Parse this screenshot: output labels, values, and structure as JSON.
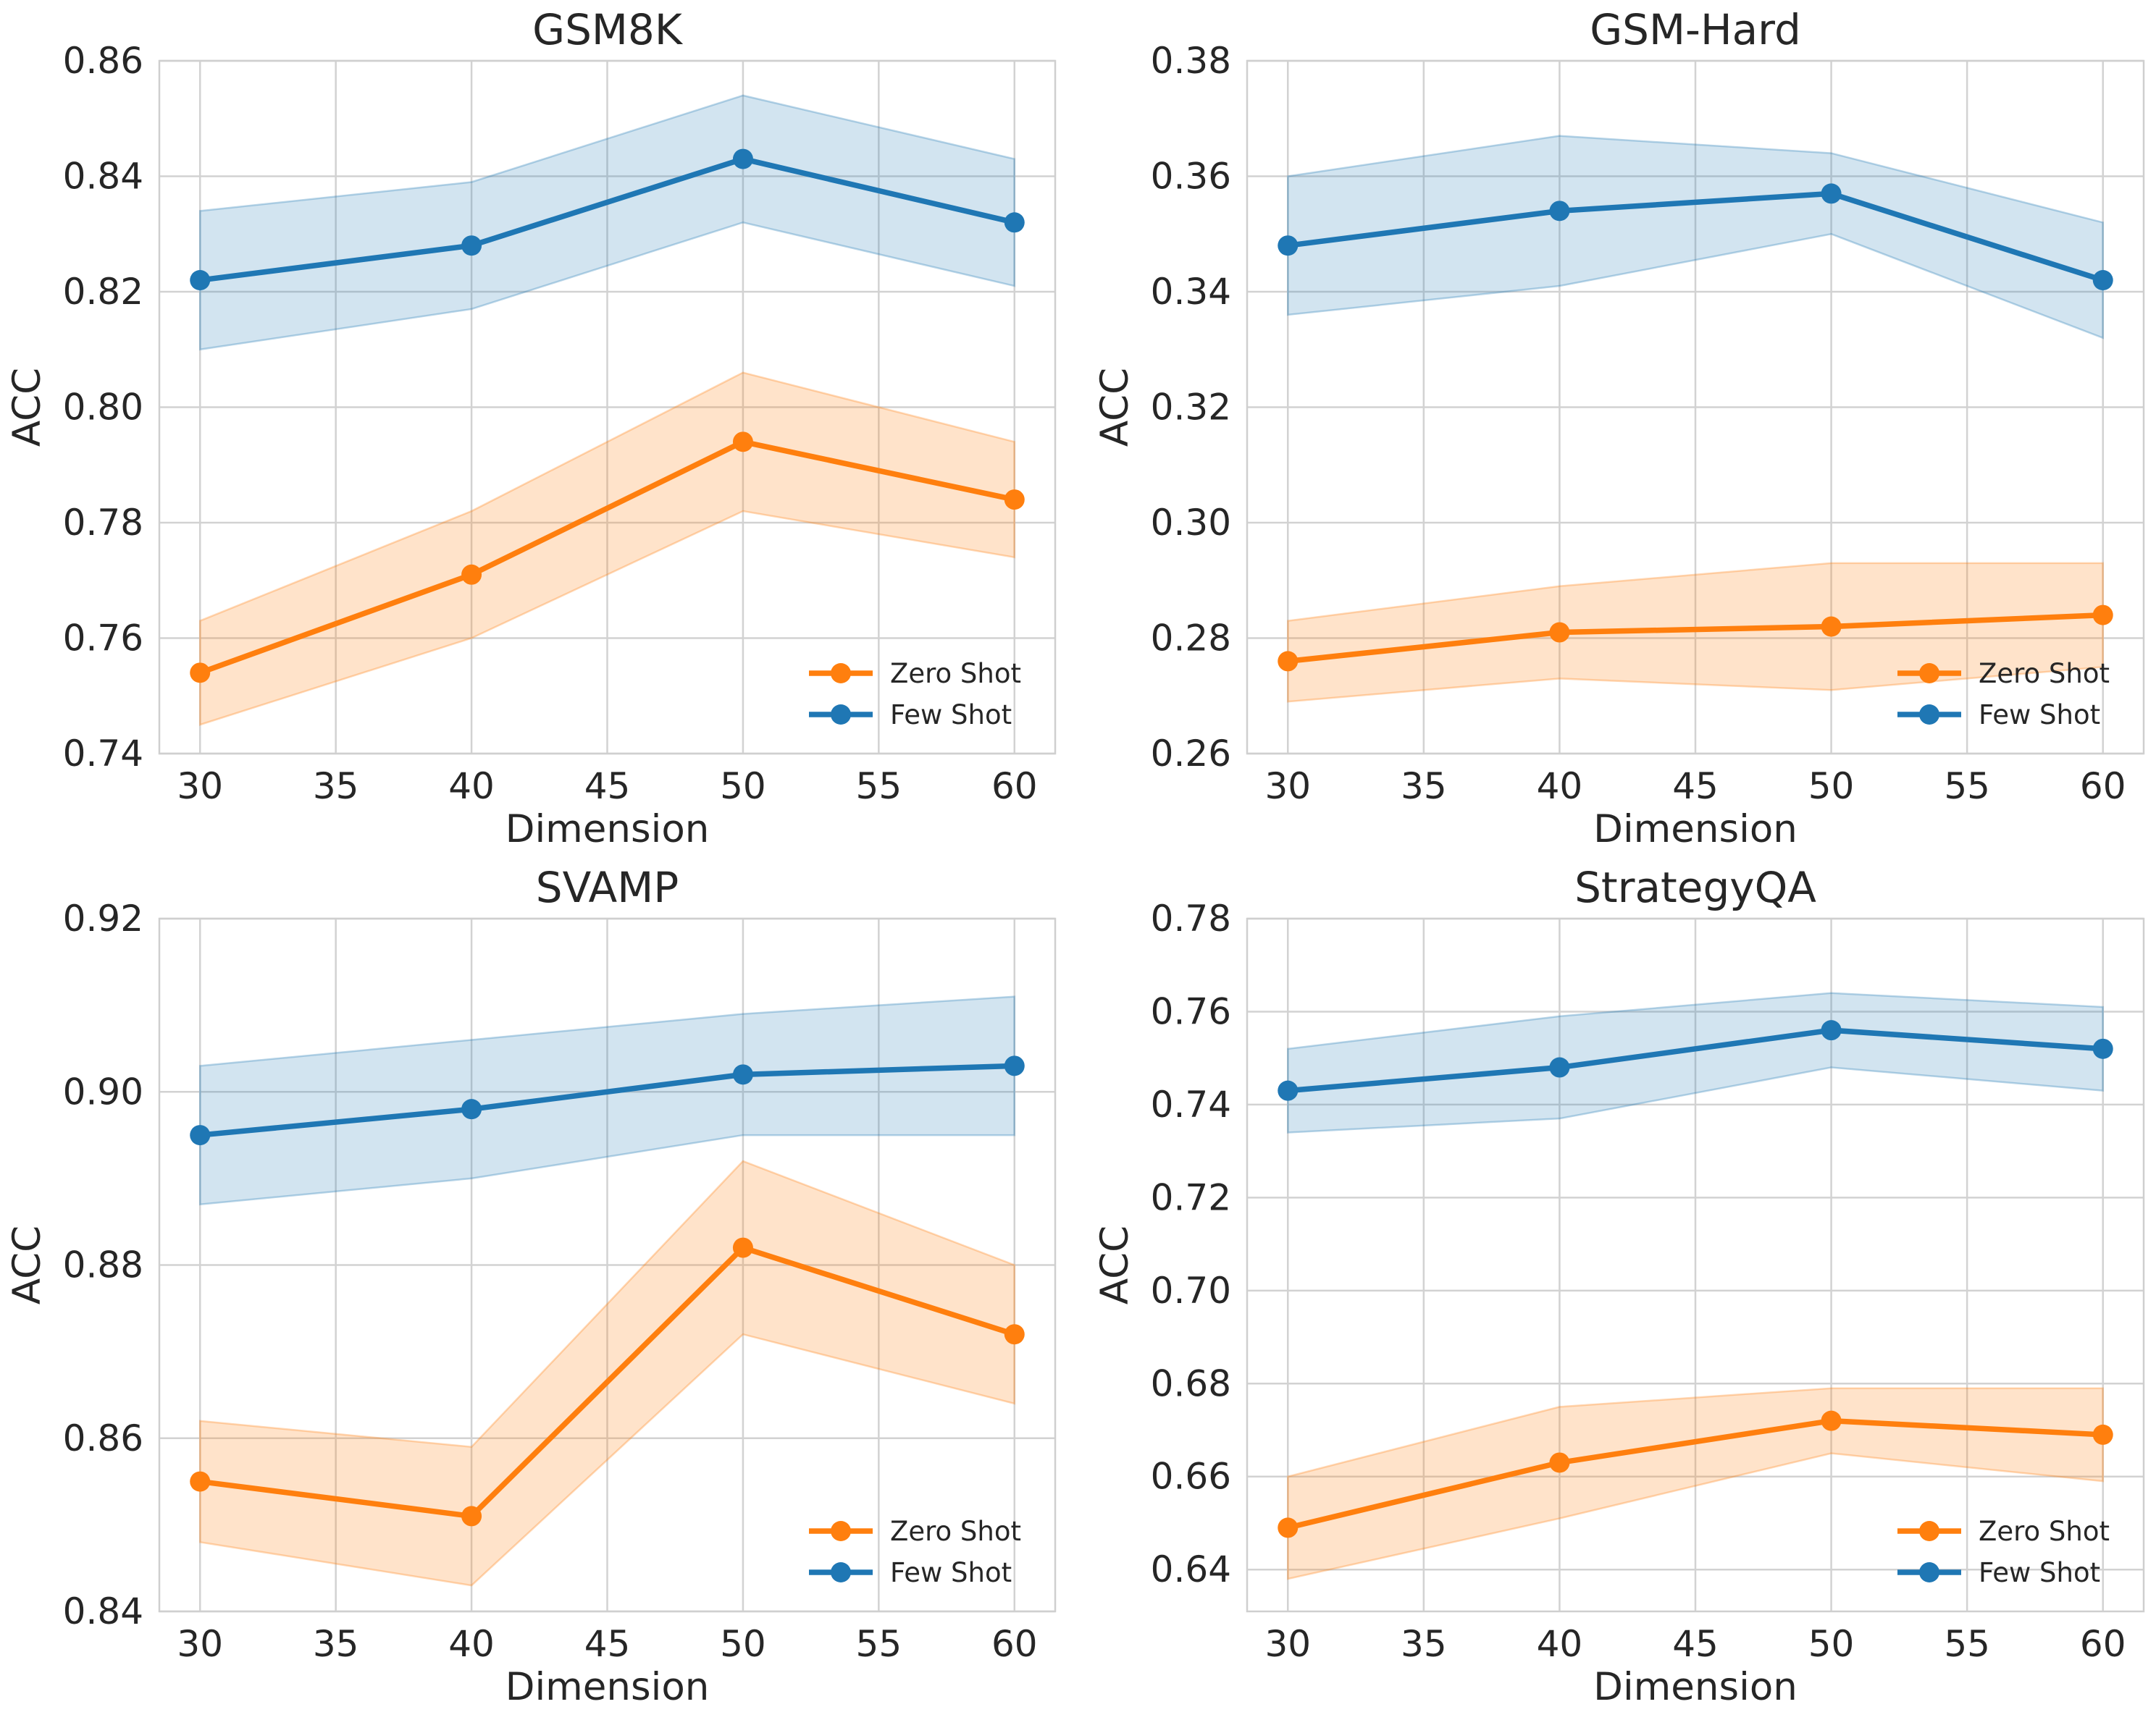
{
  "colors": {
    "zero_shot": "#ff7f0e",
    "few_shot": "#1f77b4"
  },
  "chart_data": [
    {
      "type": "line",
      "title": "GSM8K",
      "xlabel": "Dimension",
      "ylabel": "ACC",
      "x": [
        30,
        40,
        50,
        60
      ],
      "xticks": [
        30,
        35,
        40,
        45,
        50,
        55,
        60
      ],
      "xlim": [
        28.5,
        61.5
      ],
      "yticks": [
        0.74,
        0.76,
        0.78,
        0.8,
        0.82,
        0.84,
        0.86
      ],
      "ytick_labels": [
        "0.74",
        "0.76",
        "0.78",
        "0.80",
        "0.82",
        "0.84",
        "0.86"
      ],
      "ylim": [
        0.74,
        0.86
      ],
      "grid": true,
      "legend": "lower-right",
      "series": [
        {
          "name": "Zero Shot",
          "key": "zero_shot",
          "values": [
            0.754,
            0.771,
            0.794,
            0.784
          ],
          "lower": [
            0.745,
            0.76,
            0.782,
            0.774
          ],
          "upper": [
            0.763,
            0.782,
            0.806,
            0.794
          ]
        },
        {
          "name": "Few Shot",
          "key": "few_shot",
          "values": [
            0.822,
            0.828,
            0.843,
            0.832
          ],
          "lower": [
            0.81,
            0.817,
            0.832,
            0.821
          ],
          "upper": [
            0.834,
            0.839,
            0.854,
            0.843
          ]
        }
      ]
    },
    {
      "type": "line",
      "title": "GSM-Hard",
      "xlabel": "Dimension",
      "ylabel": "ACC",
      "x": [
        30,
        40,
        50,
        60
      ],
      "xticks": [
        30,
        35,
        40,
        45,
        50,
        55,
        60
      ],
      "xlim": [
        28.5,
        61.5
      ],
      "yticks": [
        0.26,
        0.28,
        0.3,
        0.32,
        0.34,
        0.36,
        0.38
      ],
      "ytick_labels": [
        "0.26",
        "0.28",
        "0.30",
        "0.32",
        "0.34",
        "0.36",
        "0.38"
      ],
      "ylim": [
        0.26,
        0.38
      ],
      "grid": true,
      "legend": "lower-right",
      "series": [
        {
          "name": "Zero Shot",
          "key": "zero_shot",
          "values": [
            0.276,
            0.281,
            0.282,
            0.284
          ],
          "lower": [
            0.269,
            0.273,
            0.271,
            0.275
          ],
          "upper": [
            0.283,
            0.289,
            0.293,
            0.293
          ]
        },
        {
          "name": "Few Shot",
          "key": "few_shot",
          "values": [
            0.348,
            0.354,
            0.357,
            0.342
          ],
          "lower": [
            0.336,
            0.341,
            0.35,
            0.332
          ],
          "upper": [
            0.36,
            0.367,
            0.364,
            0.352
          ]
        }
      ]
    },
    {
      "type": "line",
      "title": "SVAMP",
      "xlabel": "Dimension",
      "ylabel": "ACC",
      "x": [
        30,
        40,
        50,
        60
      ],
      "xticks": [
        30,
        35,
        40,
        45,
        50,
        55,
        60
      ],
      "xlim": [
        28.5,
        61.5
      ],
      "yticks": [
        0.84,
        0.86,
        0.88,
        0.9,
        0.92
      ],
      "ytick_labels": [
        "0.84",
        "0.86",
        "0.88",
        "0.90",
        "0.92"
      ],
      "ylim": [
        0.84,
        0.92
      ],
      "grid": true,
      "legend": "lower-right",
      "series": [
        {
          "name": "Zero Shot",
          "key": "zero_shot",
          "values": [
            0.855,
            0.851,
            0.882,
            0.872
          ],
          "lower": [
            0.848,
            0.843,
            0.872,
            0.864
          ],
          "upper": [
            0.862,
            0.859,
            0.892,
            0.88
          ]
        },
        {
          "name": "Few Shot",
          "key": "few_shot",
          "values": [
            0.895,
            0.898,
            0.902,
            0.903
          ],
          "lower": [
            0.887,
            0.89,
            0.895,
            0.895
          ],
          "upper": [
            0.903,
            0.906,
            0.909,
            0.911
          ]
        }
      ]
    },
    {
      "type": "line",
      "title": "StrategyQA",
      "xlabel": "Dimension",
      "ylabel": "ACC",
      "x": [
        30,
        40,
        50,
        60
      ],
      "xticks": [
        30,
        35,
        40,
        45,
        50,
        55,
        60
      ],
      "xlim": [
        28.5,
        61.5
      ],
      "yticks": [
        0.64,
        0.66,
        0.68,
        0.7,
        0.72,
        0.74,
        0.76,
        0.78
      ],
      "ytick_labels": [
        "0.64",
        "0.66",
        "0.68",
        "0.70",
        "0.72",
        "0.74",
        "0.76",
        "0.78"
      ],
      "ylim": [
        0.631,
        0.78
      ],
      "grid": true,
      "legend": "lower-right",
      "series": [
        {
          "name": "Zero Shot",
          "key": "zero_shot",
          "values": [
            0.649,
            0.663,
            0.672,
            0.669
          ],
          "lower": [
            0.638,
            0.651,
            0.665,
            0.659
          ],
          "upper": [
            0.66,
            0.675,
            0.679,
            0.679
          ]
        },
        {
          "name": "Few Shot",
          "key": "few_shot",
          "values": [
            0.743,
            0.748,
            0.756,
            0.752
          ],
          "lower": [
            0.734,
            0.737,
            0.748,
            0.743
          ],
          "upper": [
            0.752,
            0.759,
            0.764,
            0.761
          ]
        }
      ]
    }
  ]
}
